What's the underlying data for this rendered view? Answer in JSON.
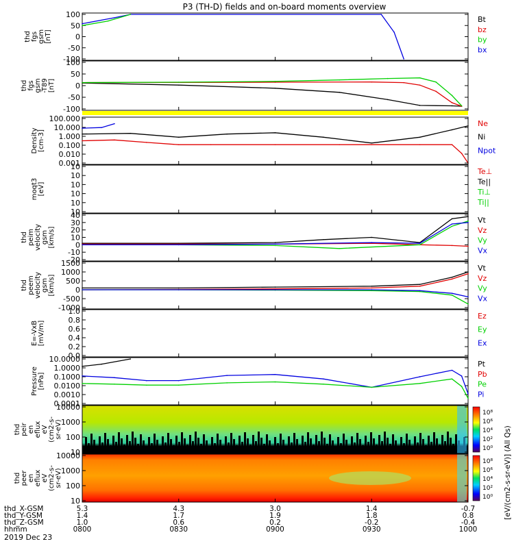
{
  "title": "P3 (TH-D) fields and on-board moments overview",
  "date_label": "2019 Dec 23",
  "orbit": {
    "rows": [
      {
        "label": "thd_X-GSM",
        "values": [
          "5.3",
          "4.3",
          "3.0",
          "1.4",
          "-0.7"
        ]
      },
      {
        "label": "thd_Y-GSM",
        "values": [
          "1.4",
          "1.7",
          "1.9",
          "1.8",
          "0.8"
        ]
      },
      {
        "label": "thd_Z-GSM",
        "values": [
          "1.0",
          "0.6",
          "0.2",
          "-0.2",
          "-0.4"
        ]
      },
      {
        "label": "hhmm",
        "values": [
          "0800",
          "0830",
          "0900",
          "0930",
          "1000"
        ]
      }
    ]
  },
  "colorbar_label": "[eV/(cm2-s-sr-eV)] (All Qs)",
  "colors": {
    "black": "#000000",
    "red": "#e00000",
    "green": "#00d000",
    "blue": "#0000e0",
    "yellow": "#ffff00"
  },
  "chart_data": [
    {
      "type": "line",
      "id": "fgs",
      "ylabel": [
        "thd",
        "fgs",
        "gsm",
        "[nT]"
      ],
      "yticks": [
        "100",
        "50",
        "0",
        "-50",
        "-100"
      ],
      "ylim": [
        -100,
        100
      ],
      "legend": [
        {
          "name": "Bt",
          "color": "black"
        },
        {
          "name": "bz",
          "color": "red"
        },
        {
          "name": "by",
          "color": "green"
        },
        {
          "name": "bx",
          "color": "blue"
        }
      ],
      "series": [
        {
          "name": "bx",
          "color": "blue",
          "x": [
            "08:00",
            "08:10",
            "08:15",
            "09:33",
            "09:37",
            "09:40"
          ],
          "y": [
            58,
            85,
            100,
            100,
            20,
            -100
          ]
        },
        {
          "name": "by",
          "color": "green",
          "x": [
            "08:00",
            "08:08",
            "08:15"
          ],
          "y": [
            50,
            70,
            100
          ]
        }
      ]
    },
    {
      "type": "line",
      "id": "fgs_minus_t89",
      "ylabel": [
        "thd",
        "fgs",
        "gsm",
        "-T89",
        "[nT]"
      ],
      "yticks": [
        "100",
        "50",
        "0",
        "-50",
        "-100"
      ],
      "ylim": [
        -125,
        100
      ],
      "series": [
        {
          "name": "Bt",
          "color": "black",
          "x": [
            "08:00",
            "08:30",
            "09:00",
            "09:20",
            "09:35",
            "09:45",
            "09:55",
            "09:58"
          ],
          "y": [
            0,
            -10,
            -25,
            -45,
            -80,
            -108,
            -110,
            -112
          ]
        },
        {
          "name": "bz",
          "color": "red",
          "x": [
            "08:00",
            "08:30",
            "09:00",
            "09:30",
            "09:40",
            "09:45",
            "09:50",
            "09:55",
            "09:58"
          ],
          "y": [
            2,
            3,
            4,
            5,
            2,
            -10,
            -40,
            -95,
            -112
          ]
        },
        {
          "name": "by",
          "color": "green",
          "x": [
            "08:00",
            "08:30",
            "09:00",
            "09:20",
            "09:35",
            "09:45",
            "09:50",
            "09:55",
            "09:58"
          ],
          "y": [
            2,
            4,
            8,
            15,
            22,
            25,
            5,
            -60,
            -110
          ]
        }
      ]
    },
    {
      "type": "line",
      "id": "density",
      "ylabel": [
        "Density",
        "[cm-3]"
      ],
      "yticks": [
        "100.000",
        "10.000",
        "1.000",
        "0.100",
        "0.010",
        "0.001"
      ],
      "ylim": [
        0.001,
        1000
      ],
      "log": true,
      "legend": [
        {
          "name": "Ne",
          "color": "red"
        },
        {
          "name": "Ni",
          "color": "black"
        },
        {
          "name": "Npot",
          "color": "blue"
        }
      ],
      "series": [
        {
          "name": "Npot",
          "color": "blue",
          "x": [
            "08:00",
            "08:06",
            "08:10"
          ],
          "y": [
            50,
            60,
            200
          ]
        },
        {
          "name": "Ni",
          "color": "black",
          "x": [
            "08:00",
            "08:15",
            "08:30",
            "08:45",
            "09:00",
            "09:15",
            "09:30",
            "09:45",
            "09:55",
            "10:00"
          ],
          "y": [
            8,
            10,
            3,
            8,
            12,
            3,
            0.5,
            3,
            30,
            100
          ]
        },
        {
          "name": "Ne",
          "color": "red",
          "x": [
            "08:00",
            "08:10",
            "08:20",
            "08:30",
            "08:40",
            "09:00",
            "09:20",
            "09:30",
            "09:45",
            "09:55",
            "09:58",
            "10:00"
          ],
          "y": [
            1,
            1.3,
            0.6,
            0.3,
            0.3,
            0.3,
            0.3,
            0.3,
            0.3,
            0.3,
            0.02,
            0.001
          ]
        }
      ]
    },
    {
      "type": "line",
      "id": "moms_temp",
      "ylabel": [
        "moqt3",
        "[eV]"
      ],
      "yticks": [
        "10",
        "10",
        "10",
        "10",
        "10",
        "10"
      ],
      "legend": [
        {
          "name": "Te⊥",
          "color": "red"
        },
        {
          "name": "Te||",
          "color": "black"
        },
        {
          "name": "Ti⊥",
          "color": "green"
        },
        {
          "name": "Ti||",
          "color": "green"
        }
      ]
    },
    {
      "type": "line",
      "id": "peim_velocity",
      "ylabel": [
        "thd",
        "peim",
        "velocity",
        "gsm",
        "[km/s]"
      ],
      "yticks": [
        "40",
        "30",
        "20",
        "10",
        "0",
        "-10",
        "-20"
      ],
      "ylim": [
        -20,
        40
      ],
      "legend": [
        {
          "name": "Vt",
          "color": "black"
        },
        {
          "name": "Vz",
          "color": "red"
        },
        {
          "name": "Vy",
          "color": "green"
        },
        {
          "name": "Vx",
          "color": "blue"
        }
      ],
      "series": [
        {
          "name": "Vt",
          "color": "black",
          "x": [
            "08:00",
            "08:30",
            "09:00",
            "09:15",
            "09:30",
            "09:45",
            "09:55",
            "10:00"
          ],
          "y": [
            2,
            2,
            3,
            7,
            10,
            3,
            35,
            38
          ]
        },
        {
          "name": "Vz",
          "color": "red",
          "x": [
            "08:00",
            "08:30",
            "09:00",
            "09:30",
            "09:45",
            "09:55",
            "10:00"
          ],
          "y": [
            1,
            1,
            1,
            2,
            0,
            -1,
            -2
          ]
        },
        {
          "name": "Vy",
          "color": "green",
          "x": [
            "08:00",
            "08:30",
            "09:00",
            "09:20",
            "09:45",
            "09:55",
            "10:00"
          ],
          "y": [
            0,
            0,
            -1,
            -5,
            0,
            25,
            32
          ]
        },
        {
          "name": "Vx",
          "color": "blue",
          "x": [
            "08:00",
            "08:30",
            "09:00",
            "09:30",
            "09:45",
            "09:55",
            "10:00"
          ],
          "y": [
            0,
            0,
            1,
            3,
            2,
            28,
            30
          ]
        }
      ]
    },
    {
      "type": "line",
      "id": "peem_velocity",
      "ylabel": [
        "thd",
        "peem",
        "velocity",
        "gsm",
        "[km/s]"
      ],
      "yticks": [
        "1500",
        "1000",
        "500",
        "0",
        "-500",
        "-1000"
      ],
      "ylim": [
        -1000,
        1500
      ],
      "legend": [
        {
          "name": "Vt",
          "color": "black"
        },
        {
          "name": "Vz",
          "color": "red"
        },
        {
          "name": "Vy",
          "color": "green"
        },
        {
          "name": "Vx",
          "color": "blue"
        }
      ],
      "series": [
        {
          "name": "Vt",
          "color": "black",
          "x": [
            "08:00",
            "08:30",
            "09:00",
            "09:30",
            "09:45",
            "09:55",
            "10:00"
          ],
          "y": [
            100,
            100,
            150,
            200,
            300,
            700,
            1000
          ]
        },
        {
          "name": "Vz",
          "color": "red",
          "x": [
            "08:00",
            "08:30",
            "09:00",
            "09:30",
            "09:45",
            "09:55",
            "10:00"
          ],
          "y": [
            0,
            20,
            50,
            100,
            200,
            600,
            900
          ]
        },
        {
          "name": "Vy",
          "color": "green",
          "x": [
            "08:00",
            "08:30",
            "09:00",
            "09:30",
            "09:45",
            "09:55",
            "10:00"
          ],
          "y": [
            0,
            0,
            -20,
            -50,
            -100,
            -300,
            -800
          ]
        },
        {
          "name": "Vx",
          "color": "blue",
          "x": [
            "08:00",
            "08:30",
            "09:00",
            "09:30",
            "09:45",
            "09:55",
            "10:00"
          ],
          "y": [
            0,
            0,
            0,
            0,
            -50,
            -200,
            -400
          ]
        }
      ]
    },
    {
      "type": "line",
      "id": "e_field",
      "ylabel": [
        "E=-VxB",
        "[mV/m]"
      ],
      "yticks": [
        "1.0",
        "0.8",
        "0.6",
        "0.4",
        "0.2",
        "0.0"
      ],
      "ylim": [
        0,
        1
      ],
      "legend": [
        {
          "name": "Ez",
          "color": "red"
        },
        {
          "name": "Ey",
          "color": "green"
        },
        {
          "name": "Ex",
          "color": "blue"
        }
      ]
    },
    {
      "type": "line",
      "id": "pressure",
      "ylabel": [
        "Pressure",
        "[nPa]"
      ],
      "yticks": [
        "10.0000",
        "1.0000",
        "0.1000",
        "0.0100",
        "0.0010",
        "0.0001"
      ],
      "ylim": [
        0.0001,
        100
      ],
      "log": true,
      "legend": [
        {
          "name": "Pt",
          "color": "black"
        },
        {
          "name": "Pb",
          "color": "red"
        },
        {
          "name": "Pe",
          "color": "green"
        },
        {
          "name": "Pi",
          "color": "blue"
        }
      ],
      "series": [
        {
          "name": "Pt",
          "color": "black",
          "x": [
            "08:00",
            "08:06",
            "08:15"
          ],
          "y": [
            10,
            20,
            100
          ]
        },
        {
          "name": "Pi",
          "color": "blue",
          "x": [
            "08:00",
            "08:10",
            "08:20",
            "08:30",
            "08:45",
            "09:00",
            "09:15",
            "09:30",
            "09:45",
            "09:55",
            "09:58",
            "10:00"
          ],
          "y": [
            0.5,
            0.3,
            0.12,
            0.12,
            0.6,
            0.8,
            0.2,
            0.015,
            0.4,
            3,
            0.5,
            0.002
          ]
        },
        {
          "name": "Pe",
          "color": "green",
          "x": [
            "08:00",
            "08:10",
            "08:20",
            "08:30",
            "08:45",
            "09:00",
            "09:15",
            "09:30",
            "09:45",
            "09:55",
            "09:58",
            "10:00"
          ],
          "y": [
            0.05,
            0.04,
            0.03,
            0.03,
            0.06,
            0.08,
            0.04,
            0.015,
            0.05,
            0.2,
            0.02,
            0.0005
          ]
        }
      ]
    },
    {
      "type": "heatmap",
      "id": "peir_eflux",
      "ylabel": [
        "thd",
        "peir",
        "en",
        "eflux",
        "eV",
        "(cm2-s-",
        "sr-eV)"
      ],
      "yticks": [
        "10000",
        "1000",
        "100",
        "10"
      ],
      "colorbar_ticks": [
        "10⁸",
        "10⁶",
        "10⁴",
        "10²",
        "10⁰"
      ]
    },
    {
      "type": "heatmap",
      "id": "peer_eflux",
      "ylabel": [
        "thd",
        "peer",
        "en",
        "eflux",
        "eV",
        "(cm2-s-",
        "sr-eV)"
      ],
      "yticks": [
        "10000",
        "1000",
        "100",
        "10"
      ],
      "colorbar_ticks": [
        "10⁸",
        "10⁶",
        "10⁴",
        "10²",
        "10⁰"
      ]
    }
  ]
}
